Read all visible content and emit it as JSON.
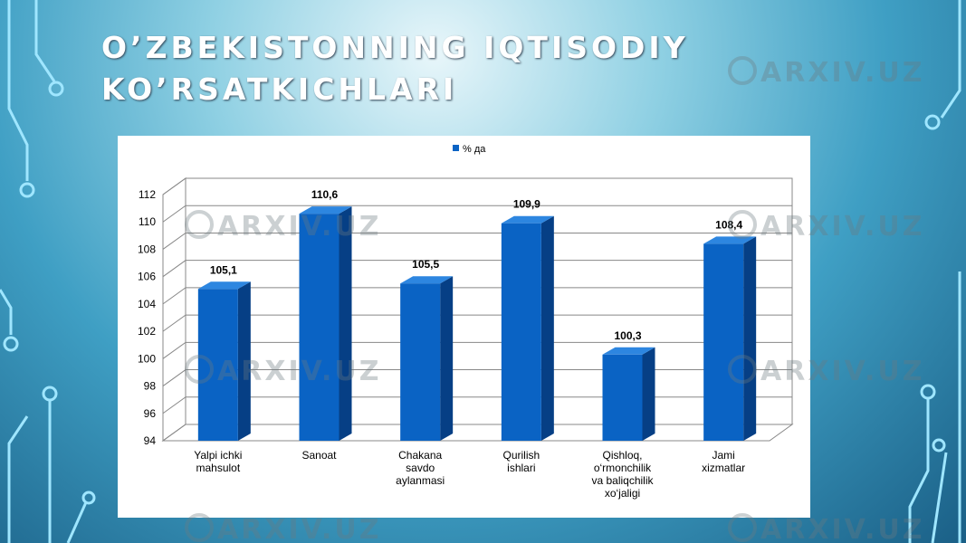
{
  "title": "O’ZBEKISTONNING IQTISODIY KO’RSATKICHLARI",
  "watermark": "ARXIV.UZ",
  "chart_data": {
    "type": "bar",
    "categories": [
      "Yalpi ichki\nmahsulot",
      "Sanoat",
      "Chakana\nsavdo\naylanmasi",
      "Qurilish\nishlari",
      "Qishloq,\no‘rmonchilik\nva  baliqchilik\nxo‘jaligi",
      "Jami\nxizmatlar"
    ],
    "series": [
      {
        "name": "% да",
        "color": "#0a63c4",
        "values": [
          105.1,
          110.6,
          105.5,
          109.9,
          100.3,
          108.4
        ],
        "value_labels": [
          "105,1",
          "110,6",
          "105,5",
          "109,9",
          "100,3",
          "108,4"
        ]
      }
    ],
    "ylim": [
      94,
      112
    ],
    "yticks": [
      94,
      96,
      98,
      100,
      102,
      104,
      106,
      108,
      110,
      112
    ],
    "grid": true,
    "legend": "top"
  }
}
